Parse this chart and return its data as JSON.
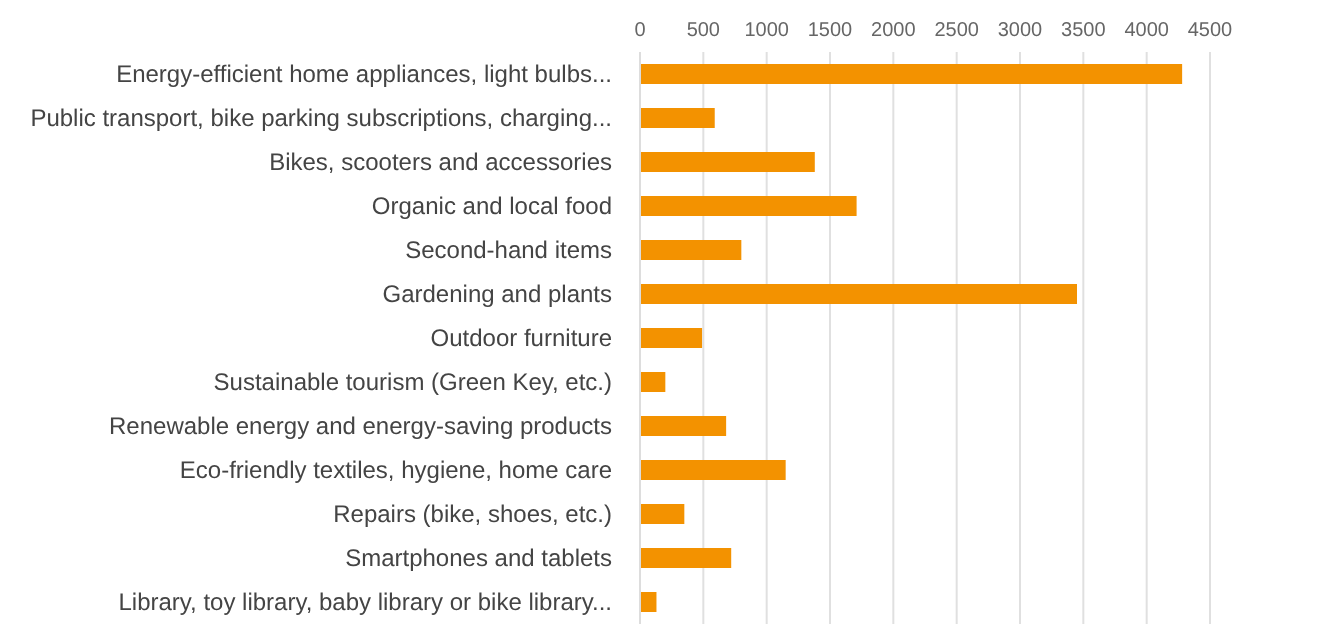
{
  "chart_data": {
    "type": "bar",
    "orientation": "horizontal",
    "categories": [
      "Energy-efficient home appliances, light bulbs...",
      "Public transport, bike parking subscriptions, charging...",
      "Bikes, scooters and accessories",
      "Organic and local food",
      "Second-hand items",
      "Gardening and plants",
      "Outdoor furniture",
      "Sustainable tourism (Green Key, etc.)",
      "Renewable energy and energy-saving products",
      "Eco-friendly textiles, hygiene, home care",
      "Repairs (bike, shoes, etc.)",
      "Smartphones and tablets",
      "Library, toy library, baby library or bike library..."
    ],
    "values": [
      4280,
      590,
      1380,
      1710,
      800,
      3450,
      490,
      200,
      680,
      1150,
      350,
      720,
      130
    ],
    "color": "#f39200",
    "xlim": [
      0,
      4500
    ],
    "xticks": [
      0,
      500,
      1000,
      1500,
      2000,
      2500,
      3000,
      3500,
      4000,
      4500
    ],
    "grid": "x"
  }
}
